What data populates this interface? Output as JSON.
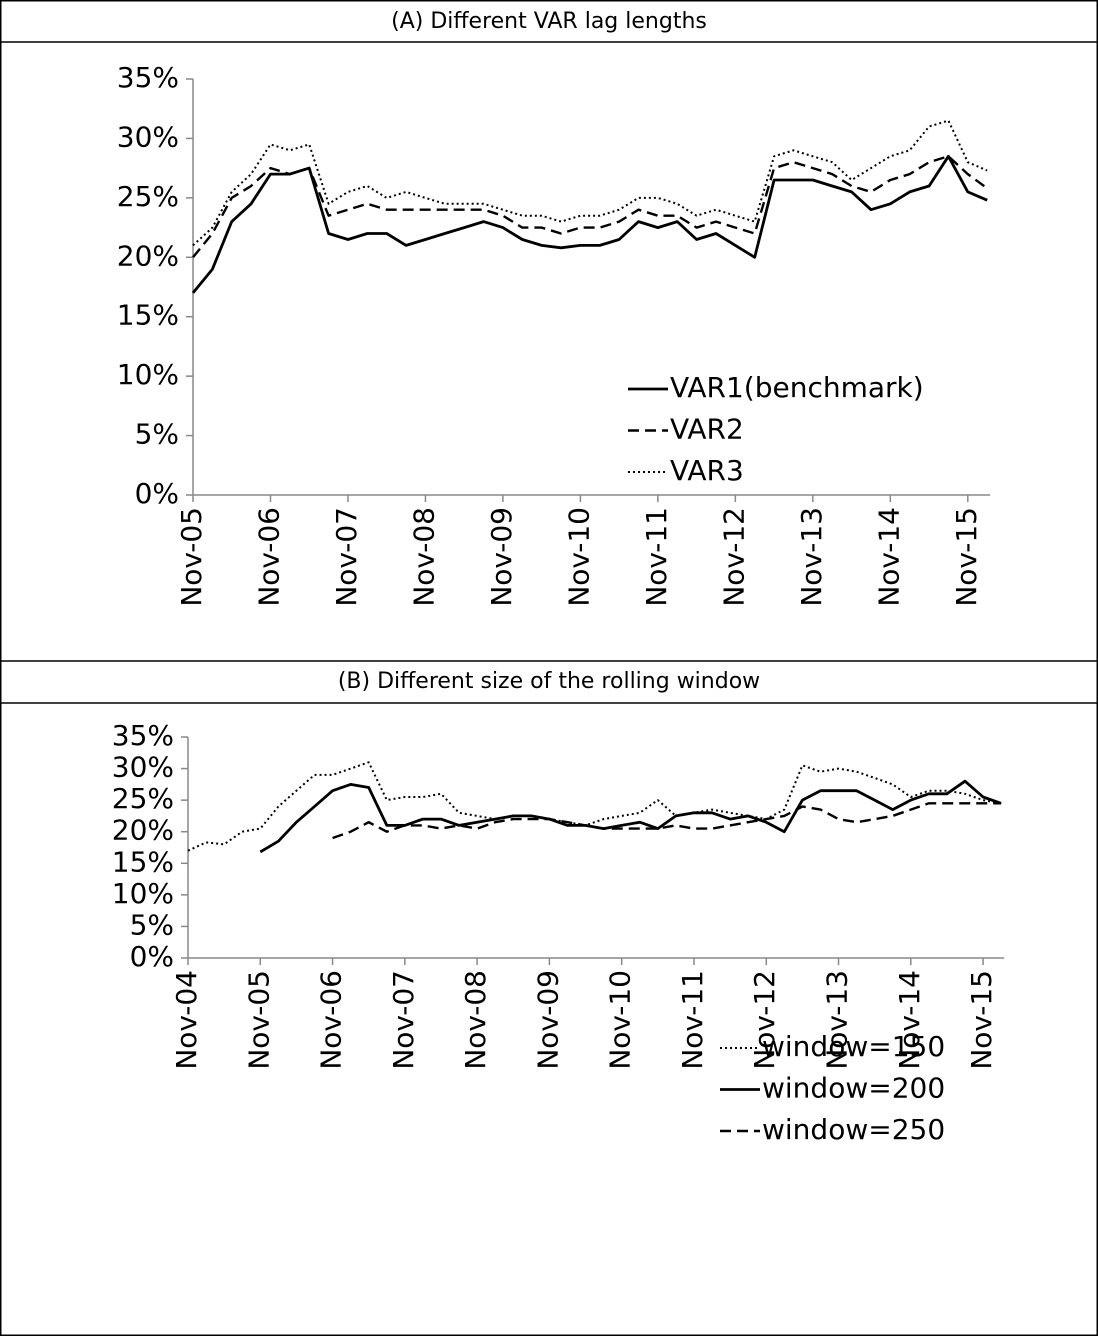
{
  "chart_data": [
    {
      "type": "line",
      "title": "(A)  Different VAR lag lengths",
      "categories": [
        "Nov-05",
        null,
        null,
        null,
        "Nov-06",
        null,
        null,
        null,
        "Nov-07",
        null,
        null,
        null,
        "Nov-08",
        null,
        null,
        null,
        "Nov-09",
        null,
        null,
        null,
        "Nov-10",
        null,
        null,
        null,
        "Nov-11",
        null,
        null,
        null,
        "Nov-12",
        null,
        null,
        null,
        "Nov-13",
        null,
        null,
        null,
        "Nov-14",
        null,
        null,
        null,
        "Nov-15",
        null
      ],
      "series": [
        {
          "name": "VAR1(benchmark)",
          "color": "#000000",
          "style": "solid",
          "values": [
            17,
            19,
            23,
            24.5,
            27,
            27,
            27.5,
            22,
            21.5,
            22,
            22,
            21,
            21.5,
            22,
            22.5,
            23,
            22.5,
            21.5,
            21,
            20.8,
            21,
            21,
            21.5,
            23,
            22.5,
            23,
            21.5,
            22,
            21,
            20,
            26.5,
            26.5,
            26.5,
            26,
            25.5,
            24,
            24.5,
            25.5,
            26,
            28.5,
            25.5,
            24.8
          ]
        },
        {
          "name": "VAR2",
          "color": "#000000",
          "style": "dashed",
          "values": [
            20,
            22,
            25,
            26,
            27.5,
            27,
            27.5,
            23.5,
            24,
            24.5,
            24,
            24,
            24,
            24,
            24,
            24,
            23.5,
            22.5,
            22.5,
            22,
            22.5,
            22.5,
            23,
            24,
            23.5,
            23.5,
            22.5,
            23,
            22.5,
            22,
            27.5,
            28,
            27.5,
            27,
            26,
            25.5,
            26.5,
            27,
            28,
            28.5,
            27,
            25.8
          ]
        },
        {
          "name": "VAR3",
          "color": "#000000",
          "style": "dotted",
          "values": [
            21,
            22.5,
            25.5,
            27,
            29.5,
            29,
            29.5,
            24.5,
            25.5,
            26,
            25,
            25.5,
            25,
            24.5,
            24.5,
            24.5,
            24,
            23.5,
            23.5,
            23,
            23.5,
            23.5,
            24,
            25,
            25,
            24.5,
            23.5,
            24,
            23.5,
            23,
            28.5,
            29,
            28.5,
            28,
            26.5,
            27.5,
            28.5,
            29,
            31,
            31.5,
            28,
            27.3
          ]
        }
      ],
      "ylim": [
        0,
        35
      ],
      "yticks": [
        {
          "value": 0,
          "label": "0%"
        },
        {
          "value": 5,
          "label": "5%"
        },
        {
          "value": 10,
          "label": "10%"
        },
        {
          "value": 15,
          "label": "15%"
        },
        {
          "value": 20,
          "label": "20%"
        },
        {
          "value": 25,
          "label": "25%"
        },
        {
          "value": 30,
          "label": "30%"
        },
        {
          "value": 35,
          "label": "35%"
        }
      ],
      "grid": false,
      "legend": "lower right"
    },
    {
      "type": "line",
      "title": "(B)  Different size of the rolling window",
      "categories": [
        "Nov-04",
        null,
        null,
        null,
        "Nov-05",
        null,
        null,
        null,
        "Nov-06",
        null,
        null,
        null,
        "Nov-07",
        null,
        null,
        null,
        "Nov-08",
        null,
        null,
        null,
        "Nov-09",
        null,
        null,
        null,
        "Nov-10",
        null,
        null,
        null,
        "Nov-11",
        null,
        null,
        null,
        "Nov-12",
        null,
        null,
        null,
        "Nov-13",
        null,
        null,
        null,
        "Nov-14",
        null,
        null,
        null,
        "Nov-15",
        null
      ],
      "series": [
        {
          "name": "window=150",
          "color": "#000000",
          "style": "dotted",
          "values": [
            17,
            18.3,
            18,
            20,
            20.5,
            24,
            26.5,
            29,
            29,
            30,
            31,
            25,
            25.5,
            25.5,
            26,
            23,
            22.5,
            22,
            22.5,
            22.5,
            22,
            21.5,
            21,
            22,
            22.5,
            23,
            25,
            22.5,
            23,
            23.5,
            23,
            22.5,
            22,
            23.5,
            30.5,
            29.5,
            30,
            29.5,
            28.5,
            27.5,
            25.5,
            26.5,
            26.5,
            26,
            25,
            24.5
          ]
        },
        {
          "name": "window=200",
          "color": "#000000",
          "style": "solid",
          "values": [
            null,
            null,
            null,
            null,
            16.8,
            18.5,
            21.5,
            24,
            26.5,
            27.5,
            27,
            21,
            21,
            22,
            22,
            21,
            21.5,
            22,
            22.5,
            22.5,
            22,
            21,
            21,
            20.5,
            21,
            21.5,
            20.5,
            22.5,
            23,
            23,
            22,
            22.5,
            21.5,
            20,
            25,
            26.5,
            26.5,
            26.5,
            25,
            23.5,
            25,
            26,
            26,
            28,
            25.5,
            24.5
          ]
        },
        {
          "name": "window=250",
          "color": "#000000",
          "style": "dashed",
          "values": [
            null,
            null,
            null,
            null,
            null,
            null,
            null,
            null,
            19,
            20,
            21.5,
            20,
            21,
            21,
            20.5,
            21,
            20.5,
            21.5,
            22,
            22,
            22,
            21.5,
            21,
            20.5,
            20.5,
            20.5,
            20.5,
            21,
            20.5,
            20.5,
            21,
            21.5,
            22,
            22.5,
            24,
            23.5,
            22,
            21.5,
            22,
            22.5,
            23.5,
            24.5,
            24.5,
            24.5,
            24.5,
            24.5
          ]
        }
      ],
      "ylim": [
        0,
        35
      ],
      "yticks": [
        {
          "value": 0,
          "label": "0%"
        },
        {
          "value": 5,
          "label": "5%"
        },
        {
          "value": 10,
          "label": "10%"
        },
        {
          "value": 15,
          "label": "15%"
        },
        {
          "value": 20,
          "label": "20%"
        },
        {
          "value": 25,
          "label": "25%"
        },
        {
          "value": 30,
          "label": "30%"
        },
        {
          "value": 35,
          "label": "35%"
        }
      ],
      "grid": false,
      "legend": "lower right"
    }
  ]
}
